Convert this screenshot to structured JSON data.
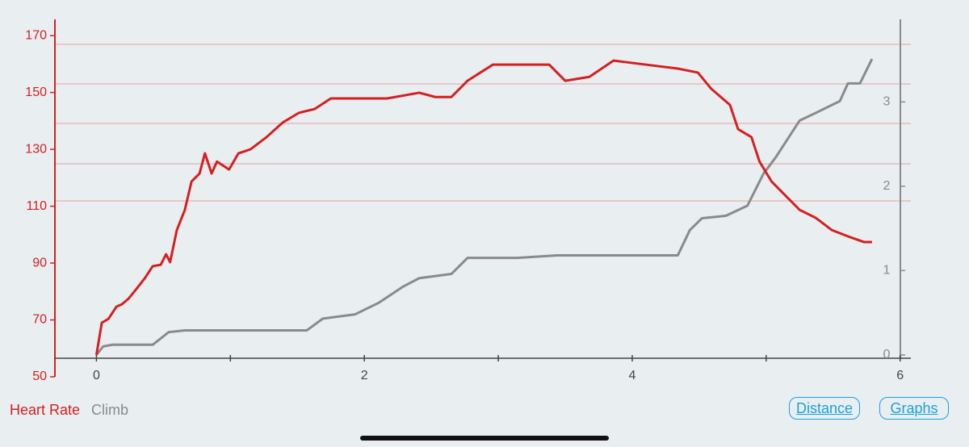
{
  "chart_data": {
    "type": "line",
    "xlim": [
      -0.31,
      6.08
    ],
    "xticks": [
      0,
      2,
      4,
      6
    ],
    "xminorticks": [
      1,
      3,
      5
    ],
    "ylim": [
      50,
      175
    ],
    "yticks": [
      50,
      70,
      90,
      110,
      130,
      150,
      170
    ],
    "y2lim": [
      -0.04,
      3.97
    ],
    "y2ticks": [
      0,
      1,
      2,
      3
    ],
    "series": [
      {
        "name": "Heart Rate",
        "color": "#d42020",
        "x": [
          0,
          0.04,
          0.09,
          0.15,
          0.19,
          0.24,
          0.3,
          0.36,
          0.42,
          0.48,
          0.52,
          0.55,
          0.6,
          0.66,
          0.71,
          0.77,
          0.81,
          0.86,
          0.9,
          0.99,
          1.06,
          1.15,
          1.27,
          1.39,
          1.51,
          1.63,
          1.75,
          1.93,
          2.17,
          2.41,
          2.53,
          2.65,
          2.77,
          2.96,
          3.05,
          3.2,
          3.38,
          3.5,
          3.68,
          3.86,
          4.1,
          4.34,
          4.49,
          4.59,
          4.73,
          4.79,
          4.89,
          4.95,
          5.04,
          5.13,
          5.25,
          5.37,
          5.49,
          5.61,
          5.73,
          5.79
        ],
        "values": [
          57.7,
          69,
          70.4,
          74.7,
          75.5,
          77.5,
          81,
          84.6,
          88.9,
          89.4,
          93.1,
          90.3,
          101.6,
          108.7,
          118.7,
          121.5,
          128.6,
          121.5,
          125.7,
          122.9,
          128.6,
          130,
          134.3,
          139.4,
          142.8,
          144.2,
          147.9,
          147.9,
          147.9,
          149.9,
          148.4,
          148.4,
          154.1,
          159.8,
          159.8,
          159.8,
          159.8,
          154.1,
          155.5,
          161.2,
          159.8,
          158.4,
          157,
          151.3,
          145.6,
          137.1,
          134.3,
          125.7,
          118.7,
          114.4,
          108.7,
          105.9,
          101.6,
          99.4,
          97.4,
          97.4
        ]
      },
      {
        "name": "Climb",
        "color": "#8a8a8a",
        "axis": "y2",
        "x": [
          0,
          0.05,
          0.12,
          0.42,
          0.54,
          0.66,
          1.57,
          1.69,
          1.93,
          2.11,
          2.29,
          2.41,
          2.65,
          2.77,
          3.14,
          3.44,
          4.34,
          4.43,
          4.52,
          4.7,
          4.86,
          4.98,
          5.07,
          5.25,
          5.37,
          5.55,
          5.61,
          5.7,
          5.79
        ],
        "values": [
          0,
          0.1,
          0.12,
          0.12,
          0.27,
          0.29,
          0.29,
          0.43,
          0.48,
          0.62,
          0.81,
          0.91,
          0.96,
          1.15,
          1.15,
          1.18,
          1.18,
          1.48,
          1.62,
          1.65,
          1.77,
          2.15,
          2.34,
          2.78,
          2.87,
          3.01,
          3.22,
          3.22,
          3.51
        ]
      }
    ]
  },
  "buttons": [
    "Distance",
    "Graphs"
  ]
}
